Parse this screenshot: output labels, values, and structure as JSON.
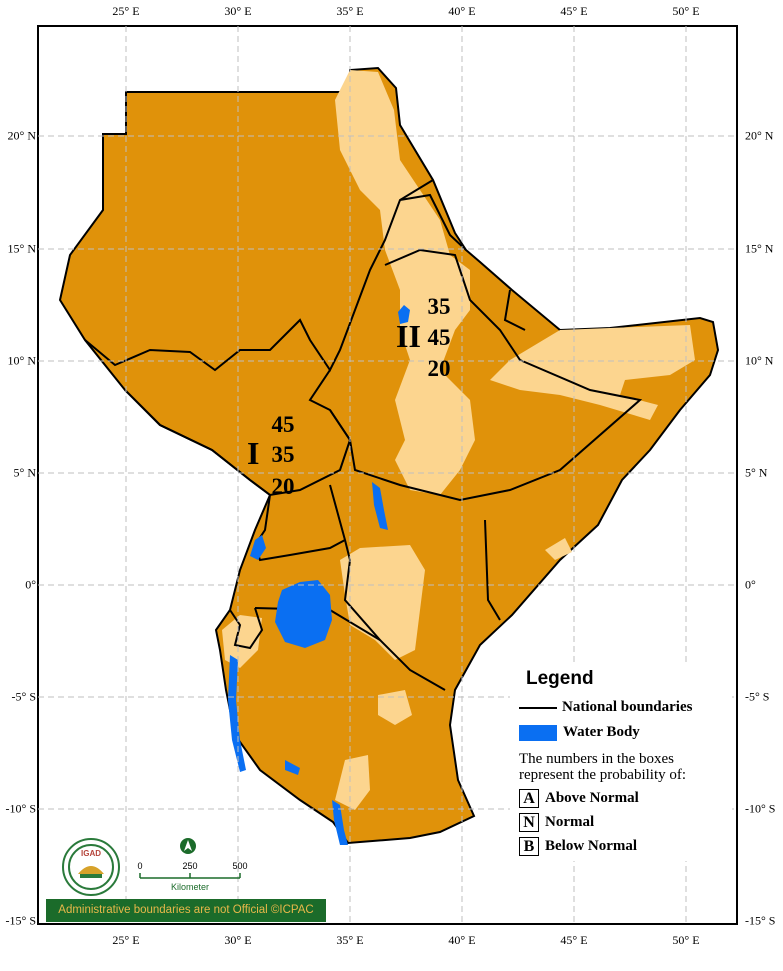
{
  "axes": {
    "longitude_ticks": [
      "25° E",
      "30° E",
      "35° E",
      "40° E",
      "45° E",
      "50° E"
    ],
    "latitude_left_ticks": [
      "20° N",
      "15° N",
      "10° N",
      "5° N",
      "0°",
      "-5° S",
      "-10° S",
      "-15° S"
    ],
    "latitude_right_ticks": [
      "20° N",
      "15° N",
      "10° N",
      "5° N",
      "0°",
      "-5° S",
      "-10° S",
      "-15° S"
    ]
  },
  "zones": [
    {
      "id": "I",
      "probabilities": [
        "45",
        "35",
        "20"
      ]
    },
    {
      "id": "II",
      "probabilities": [
        "35",
        "45",
        "20"
      ]
    }
  ],
  "legend": {
    "title": "Legend",
    "national_boundaries": "National boundaries",
    "water_body": "Water Body",
    "note": "The numbers in the boxes represent the probability of:",
    "categories": [
      {
        "letter": "A",
        "label": "Above Normal"
      },
      {
        "letter": "N",
        "label": "Normal"
      },
      {
        "letter": "B",
        "label": "Below Normal"
      }
    ]
  },
  "scale_bar": {
    "ticks": [
      "0",
      "250",
      "500"
    ],
    "unit": "Kilometer"
  },
  "logo_text": "IGAD",
  "footer": "Administrative boundaries are not Official   ©ICPAC",
  "colors": {
    "below_normal_fill": "#e0920a",
    "normal_fill": "#fcd58f",
    "water": "#0a6ff2",
    "boundary": "#000000",
    "grid": "#bfbfbf",
    "footer_bg": "#1b6b2a",
    "footer_text": "#e8b84a"
  }
}
